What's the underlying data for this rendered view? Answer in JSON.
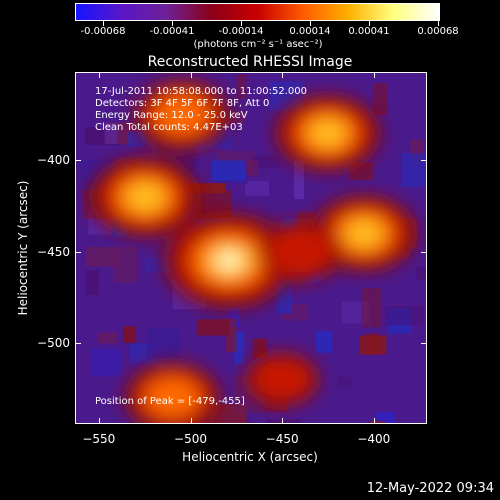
{
  "colorbar": {
    "tick_labels": [
      "-0.00068",
      "-0.00041",
      "-0.00014",
      "0.00014",
      "0.00041",
      "0.00068"
    ],
    "unit_label": "(photons cm⁻² s⁻¹ asec⁻²)",
    "colors": [
      "#1515ff",
      "#5a16c8",
      "#6e2096",
      "#8c0018",
      "#c80000",
      "#ff5a00",
      "#ffb000",
      "#ffff80",
      "#ffffff"
    ]
  },
  "plot": {
    "title": "Reconstructed RHESSI Image",
    "info_lines": [
      "17-Jul-2011 10:58:08.000 to 11:00:52.000",
      "Detectors: 3F 4F 5F 6F 7F 8F, Att 0",
      "Energy Range: 12.0 - 25.0 keV",
      "Clean     Total counts: 4.47E+03"
    ],
    "peak_label": "Position of Peak = [-479,-455]"
  },
  "chart_data": {
    "type": "heatmap",
    "title": "Reconstructed RHESSI Image",
    "xlabel": "Heliocentric X (arcsec)",
    "ylabel": "Heliocentric Y (arcsec)",
    "xlim": [
      -563,
      -371
    ],
    "ylim": [
      -544,
      -352
    ],
    "x_ticks": [
      -550,
      -500,
      -450,
      -400
    ],
    "y_ticks": [
      -400,
      -450,
      -500
    ],
    "colorbar_range": [
      -0.00068,
      0.00068
    ],
    "peak": [
      -479,
      -455
    ],
    "sources": [
      {
        "x": -479,
        "y": -455,
        "level": 1.0
      },
      {
        "x": -525,
        "y": -420,
        "level": 0.75
      },
      {
        "x": -425,
        "y": -385,
        "level": 0.7
      },
      {
        "x": -405,
        "y": -440,
        "level": 0.7
      },
      {
        "x": -505,
        "y": -375,
        "level": 0.6
      },
      {
        "x": -440,
        "y": -450,
        "level": 0.45
      },
      {
        "x": -510,
        "y": -530,
        "level": 0.6
      },
      {
        "x": -450,
        "y": -520,
        "level": 0.35
      }
    ]
  },
  "footer": {
    "date": "12-May-2022 09:34"
  }
}
